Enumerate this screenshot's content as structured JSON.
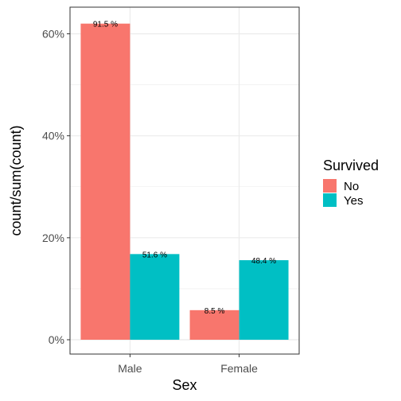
{
  "chart_data": {
    "type": "bar",
    "xlabel": "Sex",
    "ylabel": "count/sum(count)",
    "categories": [
      "Male",
      "Female"
    ],
    "ylim": [
      0,
      0.65
    ],
    "yticks": [
      0,
      0.2,
      0.4,
      0.6
    ],
    "ytick_labels": [
      "0%",
      "20%",
      "40%",
      "60%"
    ],
    "legend_title": "Survived",
    "legend_position": "right",
    "grid": true,
    "series": [
      {
        "name": "No",
        "color": "#F8766D",
        "values": [
          0.62,
          0.058
        ],
        "labels": [
          "91.5 %",
          "8.5 %"
        ]
      },
      {
        "name": "Yes",
        "color": "#00BFC4",
        "values": [
          0.168,
          0.156
        ],
        "labels": [
          "51.6 %",
          "48.4 %"
        ]
      }
    ]
  }
}
